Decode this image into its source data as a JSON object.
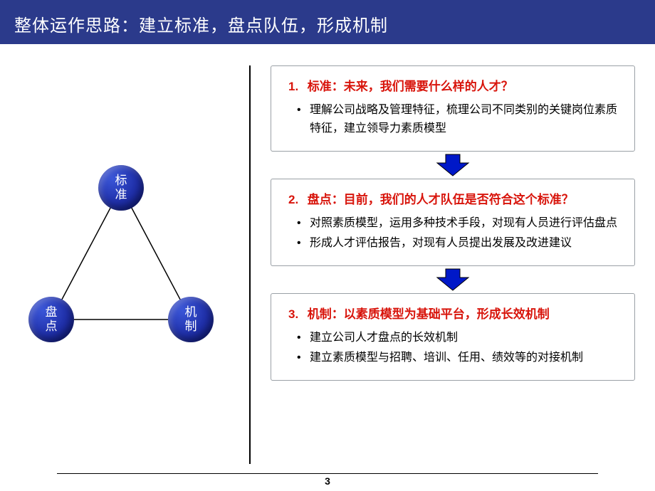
{
  "title": "整体运作思路：建立标准，盘点队伍，形成机制",
  "page_number": "3",
  "colors": {
    "header_bg": "#2b3a8b",
    "node_fill": "#1f2fa8",
    "accent_red": "#d8140b",
    "box_border": "#9aa0a6",
    "arrow_fill": "#0018c8"
  },
  "triangle": {
    "nodes": [
      {
        "id": "top",
        "label": "标准"
      },
      {
        "id": "bl",
        "label": "盘点"
      },
      {
        "id": "br",
        "label": "机制"
      }
    ],
    "edge_color": "#000000",
    "edge_width": 1.5
  },
  "boxes": [
    {
      "num": "1.",
      "title": "标准：未来，我们需要什么样的人才？",
      "bullets": [
        "理解公司战略及管理特征，梳理公司不同类别的关键岗位素质特征，建立领导力素质模型"
      ]
    },
    {
      "num": "2.",
      "title": "盘点：目前，我们的人才队伍是否符合这个标准？",
      "bullets": [
        "对照素质模型，运用多种技术手段，对现有人员进行评估盘点",
        "形成人才评估报告，对现有人员提出发展及改进建议"
      ]
    },
    {
      "num": "3.",
      "title": "机制：以素质模型为基础平台，形成长效机制",
      "bullets": [
        "建立公司人才盘点的长效机制",
        "建立素质模型与招聘、培训、任用、绩效等的对接机制"
      ]
    }
  ]
}
